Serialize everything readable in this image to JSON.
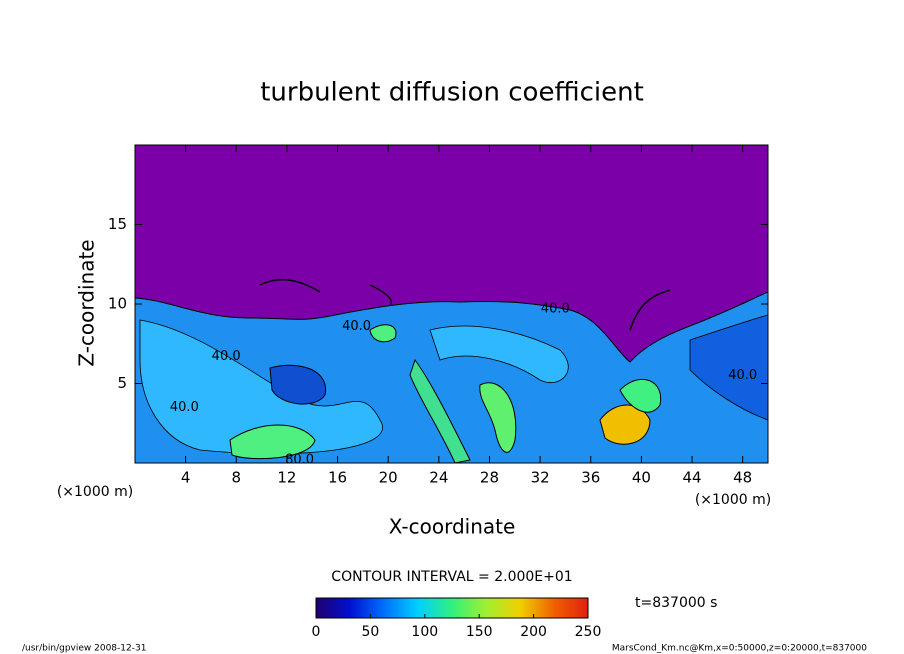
{
  "chart_data": {
    "type": "contour",
    "title": "turbulent diffusion coefficient",
    "xlabel": "X-coordinate",
    "ylabel": "Z-coordinate",
    "x_unit_label": "(×1000 m)",
    "x_unit_label_right": "(×1000 m)",
    "xlim": [
      0,
      50
    ],
    "xticks": [
      4,
      8,
      12,
      16,
      20,
      24,
      28,
      32,
      36,
      40,
      44,
      48
    ],
    "ylim": [
      0,
      20
    ],
    "yticks": [
      5,
      10,
      15
    ],
    "background_color": "#7b00a8",
    "contour_interval": "CONTOUR INTERVAL = 2.000E+01",
    "time_label": "t=837000 s",
    "annotations": [
      {
        "text": "40.0",
        "x": 17.5,
        "y": 8.6
      },
      {
        "text": "40.0",
        "x": 33.2,
        "y": 9.7
      },
      {
        "text": "40.0",
        "x": 7.2,
        "y": 6.7
      },
      {
        "text": "40.0",
        "x": 48,
        "y": 5.5
      },
      {
        "text": "80.0",
        "x": 13,
        "y": 0.2
      },
      {
        "text": "40.0",
        "x": 3.9,
        "y": 3.5
      }
    ],
    "colorbar": {
      "lim": [
        0,
        250
      ],
      "ticks": [
        0,
        50,
        100,
        150,
        200,
        250
      ],
      "colors": [
        "#20006e",
        "#0010d0",
        "#0070ff",
        "#00d0ff",
        "#30f080",
        "#a0f030",
        "#f0d000",
        "#f06000",
        "#e02010"
      ]
    },
    "footer_left": "/usr/bin/gpview   2008-12-31",
    "footer_right": "MarsCond_Km.nc@Km,x=0:50000,z=0:20000,t=837000"
  }
}
